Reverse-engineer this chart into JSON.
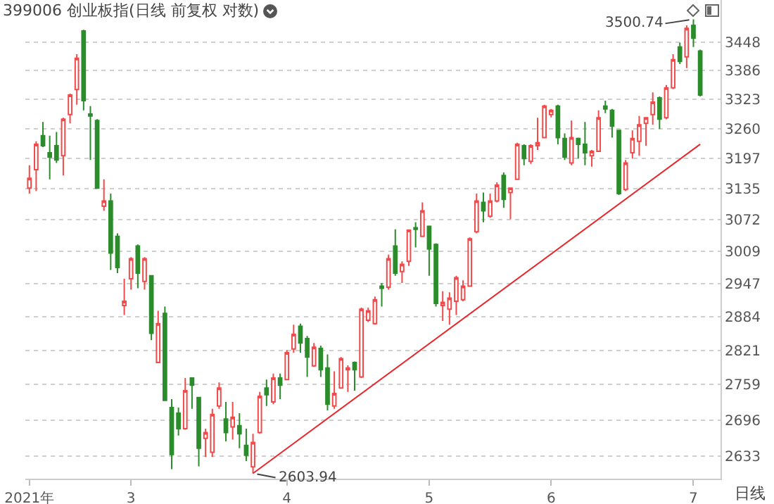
{
  "chart_data": {
    "type": "candlestick",
    "title": "399006 创业板指(日线 前复权 对数)",
    "categories": [
      "2021年",
      null,
      null,
      null,
      null,
      null,
      null,
      null,
      null,
      null,
      null,
      null,
      null,
      null,
      null,
      "3",
      null,
      null,
      null,
      null,
      null,
      null,
      null,
      null,
      null,
      null,
      null,
      null,
      null,
      null,
      null,
      null,
      null,
      null,
      null,
      null,
      null,
      null,
      "4",
      null,
      null,
      null,
      null,
      null,
      null,
      null,
      null,
      null,
      null,
      null,
      null,
      null,
      null,
      null,
      null,
      null,
      null,
      null,
      null,
      "5",
      null,
      null,
      null,
      null,
      null,
      null,
      null,
      null,
      null,
      null,
      null,
      null,
      null,
      null,
      null,
      null,
      null,
      "6",
      null,
      null,
      null,
      null,
      null,
      null,
      null,
      null,
      null,
      null,
      null,
      null,
      null,
      null,
      null,
      null,
      null,
      null,
      null,
      null,
      "7",
      null
    ],
    "ohlc": [
      [
        3136,
        3183,
        3125,
        3156
      ],
      [
        3174,
        3233,
        3130,
        3227
      ],
      [
        3245,
        3274,
        3221,
        3224
      ],
      [
        3209,
        3245,
        3154,
        3200
      ],
      [
        3224,
        3253,
        3188,
        3194
      ],
      [
        3203,
        3283,
        3162,
        3280
      ],
      [
        3290,
        3335,
        3271,
        3332
      ],
      [
        3344,
        3422,
        3311,
        3413
      ],
      [
        3474,
        3477,
        3299,
        3320
      ],
      [
        3291,
        3308,
        3194,
        3287
      ],
      [
        3277,
        3280,
        3136,
        3136
      ],
      [
        3099,
        3154,
        3090,
        3110
      ],
      [
        3110,
        3125,
        2973,
        3006
      ],
      [
        3039,
        3045,
        2967,
        2978
      ],
      [
        2905,
        2956,
        2887,
        2913
      ],
      [
        2956,
        2998,
        2935,
        2995
      ],
      [
        3020,
        3023,
        2938,
        2967
      ],
      [
        2951,
        2998,
        2935,
        2995
      ],
      [
        2962,
        2962,
        2840,
        2853
      ],
      [
        2799,
        2895,
        2799,
        2871
      ],
      [
        2890,
        2903,
        2731,
        2731
      ],
      [
        2718,
        2733,
        2611,
        2636
      ],
      [
        2708,
        2718,
        2669,
        2681
      ],
      [
        2681,
        2771,
        2679,
        2748
      ],
      [
        2771,
        2771,
        2716,
        2758
      ],
      [
        2736,
        2736,
        2616,
        2647
      ],
      [
        2664,
        2681,
        2632,
        2674
      ],
      [
        2640,
        2716,
        2632,
        2706
      ],
      [
        2721,
        2763,
        2716,
        2753
      ],
      [
        2698,
        2728,
        2659,
        2674
      ],
      [
        2684,
        2728,
        2662,
        2701
      ],
      [
        2686,
        2708,
        2647,
        2672
      ],
      [
        2652,
        2681,
        2625,
        2635
      ],
      [
        2615,
        2672,
        2603.94,
        2657
      ],
      [
        2674,
        2746,
        2672,
        2738
      ],
      [
        2753,
        2768,
        2721,
        2741
      ],
      [
        2728,
        2779,
        2724,
        2771
      ],
      [
        2771,
        2779,
        2733,
        2758
      ],
      [
        2768,
        2822,
        2768,
        2817
      ],
      [
        2824,
        2869,
        2817,
        2851
      ],
      [
        2866,
        2871,
        2817,
        2835
      ],
      [
        2843,
        2848,
        2773,
        2809
      ],
      [
        2793,
        2835,
        2791,
        2827
      ],
      [
        2825,
        2830,
        2773,
        2786
      ],
      [
        2789,
        2814,
        2713,
        2724
      ],
      [
        2721,
        2783,
        2716,
        2743
      ],
      [
        2753,
        2809,
        2753,
        2806
      ],
      [
        2786,
        2794,
        2746,
        2789
      ],
      [
        2799,
        2801,
        2748,
        2786
      ],
      [
        2773,
        2901,
        2771,
        2898
      ],
      [
        2877,
        2901,
        2874,
        2895
      ],
      [
        2871,
        2922,
        2869,
        2916
      ],
      [
        2942,
        2948,
        2903,
        2938
      ],
      [
        2940,
        3003,
        2935,
        2995
      ],
      [
        3020,
        3053,
        2962,
        2967
      ],
      [
        2970,
        2990,
        2948,
        2984
      ],
      [
        2990,
        3051,
        2981,
        3051
      ],
      [
        3056,
        3067,
        3017,
        3053
      ],
      [
        3039,
        3107,
        3039,
        3090
      ],
      [
        3059,
        3059,
        2962,
        3014
      ],
      [
        3023,
        3025,
        2903,
        2909
      ],
      [
        2905,
        2932,
        2876,
        2911
      ],
      [
        2898,
        2930,
        2869,
        2919
      ],
      [
        2913,
        2962,
        2887,
        2958
      ],
      [
        2916,
        2953,
        2913,
        2942
      ],
      [
        2942,
        3037,
        2942,
        3034
      ],
      [
        3048,
        3125,
        3045,
        3110
      ],
      [
        3107,
        3127,
        3067,
        3090
      ],
      [
        3079,
        3125,
        3076,
        3110
      ],
      [
        3110,
        3148,
        3107,
        3142
      ],
      [
        3162,
        3168,
        3096,
        3113
      ],
      [
        3127,
        3136,
        3073,
        3136
      ],
      [
        3154,
        3230,
        3154,
        3227
      ],
      [
        3224,
        3227,
        3183,
        3197
      ],
      [
        3191,
        3227,
        3186,
        3224
      ],
      [
        3224,
        3283,
        3215,
        3230
      ],
      [
        3241,
        3311,
        3241,
        3308
      ],
      [
        3290,
        3302,
        3284,
        3299
      ],
      [
        3308,
        3311,
        3227,
        3241
      ],
      [
        3239,
        3250,
        3194,
        3200
      ],
      [
        3188,
        3277,
        3183,
        3241
      ],
      [
        3239,
        3241,
        3197,
        3227
      ],
      [
        3227,
        3274,
        3183,
        3209
      ],
      [
        3203,
        3215,
        3180,
        3212
      ],
      [
        3212,
        3299,
        3212,
        3283
      ],
      [
        3308,
        3320,
        3293,
        3302
      ],
      [
        3299,
        3302,
        3241,
        3265
      ],
      [
        3256,
        3256,
        3122,
        3125
      ],
      [
        3133,
        3194,
        3130,
        3188
      ],
      [
        3209,
        3256,
        3197,
        3239
      ],
      [
        3233,
        3287,
        3203,
        3268
      ],
      [
        3271,
        3283,
        3224,
        3283
      ],
      [
        3290,
        3338,
        3268,
        3317
      ],
      [
        3326,
        3329,
        3259,
        3280
      ],
      [
        3283,
        3354,
        3280,
        3348
      ],
      [
        3348,
        3422,
        3345,
        3410
      ],
      [
        3438,
        3448,
        3400,
        3406
      ],
      [
        3416,
        3487,
        3391,
        3480
      ],
      [
        3487,
        3500.74,
        3438,
        3458
      ],
      [
        3429,
        3432,
        3329,
        3332
      ]
    ],
    "colors": [
      "#f24a4a",
      "#f24a4a",
      "#2b8c2b",
      "#2b8c2b",
      "#2b8c2b",
      "#f24a4a",
      "#f24a4a",
      "#f24a4a",
      "#2b8c2b",
      "#2b8c2b",
      "#2b8c2b",
      "#f24a4a",
      "#2b8c2b",
      "#2b8c2b",
      "#f24a4a",
      "#f24a4a",
      "#2b8c2b",
      "#f24a4a",
      "#2b8c2b",
      "#f24a4a",
      "#2b8c2b",
      "#2b8c2b",
      "#2b8c2b",
      "#f24a4a",
      "#2b8c2b",
      "#2b8c2b",
      "#f24a4a",
      "#f24a4a",
      "#f24a4a",
      "#2b8c2b",
      "#f24a4a",
      "#2b8c2b",
      "#2b8c2b",
      "#f24a4a",
      "#f24a4a",
      "#2b8c2b",
      "#f24a4a",
      "#2b8c2b",
      "#f24a4a",
      "#f24a4a",
      "#2b8c2b",
      "#2b8c2b",
      "#f24a4a",
      "#2b8c2b",
      "#2b8c2b",
      "#f24a4a",
      "#f24a4a",
      "#f24a4a",
      "#2b8c2b",
      "#f24a4a",
      "#f24a4a",
      "#f24a4a",
      "#2b8c2b",
      "#f24a4a",
      "#2b8c2b",
      "#f24a4a",
      "#f24a4a",
      "#2b8c2b",
      "#f24a4a",
      "#2b8c2b",
      "#2b8c2b",
      "#f24a4a",
      "#f24a4a",
      "#f24a4a",
      "#f24a4a",
      "#f24a4a",
      "#f24a4a",
      "#2b8c2b",
      "#f24a4a",
      "#f24a4a",
      "#2b8c2b",
      "#f24a4a",
      "#f24a4a",
      "#2b8c2b",
      "#f24a4a",
      "#f24a4a",
      "#f24a4a",
      "#f24a4a",
      "#2b8c2b",
      "#2b8c2b",
      "#f24a4a",
      "#2b8c2b",
      "#2b8c2b",
      "#f24a4a",
      "#f24a4a",
      "#2b8c2b",
      "#2b8c2b",
      "#2b8c2b",
      "#f24a4a",
      "#f24a4a",
      "#f24a4a",
      "#f24a4a",
      "#f24a4a",
      "#2b8c2b",
      "#f24a4a",
      "#f24a4a",
      "#2b8c2b",
      "#f24a4a",
      "#2b8c2b",
      "#2b8c2b"
    ],
    "series": [
      {
        "type": "line",
        "color": "#e8262b",
        "values": [
          null,
          null,
          null,
          null,
          null,
          null,
          null,
          null,
          null,
          null,
          null,
          null,
          null,
          null,
          null,
          null,
          null,
          null,
          null,
          null,
          null,
          null,
          null,
          null,
          null,
          null,
          null,
          null,
          null,
          null,
          null,
          null,
          null,
          2603.94,
          null,
          null,
          null,
          null,
          null,
          null,
          null,
          null,
          null,
          null,
          null,
          null,
          null,
          null,
          null,
          null,
          null,
          null,
          null,
          null,
          null,
          null,
          null,
          null,
          null,
          null,
          null,
          null,
          null,
          null,
          null,
          null,
          null,
          null,
          null,
          null,
          null,
          null,
          null,
          null,
          null,
          null,
          null,
          null,
          null,
          null,
          null,
          null,
          null,
          null,
          null,
          null,
          null,
          null,
          null,
          null,
          null,
          null,
          null,
          null,
          null,
          null,
          null,
          null,
          null,
          3227
        ]
      }
    ],
    "ylim": [
      2595,
      3545
    ],
    "yticks": [
      2633,
      2696,
      2759,
      2821,
      2884,
      2947,
      3009,
      3072,
      3135,
      3197,
      3260,
      3323,
      3386,
      3448
    ],
    "log": "y",
    "grid": "y",
    "annotations": [
      "3500.74",
      "2603.94",
      "日线"
    ]
  }
}
